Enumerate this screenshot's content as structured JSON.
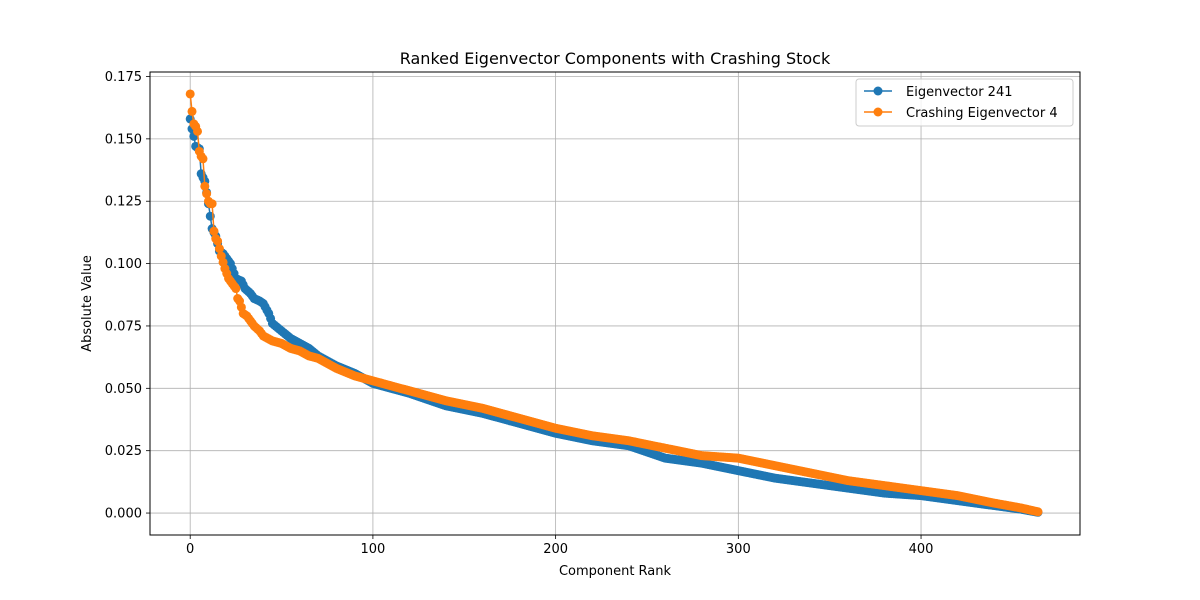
{
  "chart_data": {
    "type": "line",
    "title": "Ranked Eigenvector Components with Crashing Stock",
    "xlabel": "Component Rank",
    "ylabel": "Absolute Value",
    "xlim": [
      -22,
      487
    ],
    "ylim": [
      -0.0088,
      0.1768
    ],
    "xticks": [
      0,
      100,
      200,
      300,
      400
    ],
    "xtick_labels": [
      "0",
      "100",
      "200",
      "300",
      "400"
    ],
    "yticks": [
      0.0,
      0.025,
      0.05,
      0.075,
      0.1,
      0.125,
      0.15,
      0.175
    ],
    "ytick_labels": [
      "0.000",
      "0.025",
      "0.050",
      "0.075",
      "0.100",
      "0.125",
      "0.150",
      "0.175"
    ],
    "grid": true,
    "legend_position": "top-right",
    "n_points": 465,
    "series": [
      {
        "name": "Eigenvector 241",
        "color": "#1f77b4",
        "marker": "circle",
        "x": [
          0,
          1,
          2,
          3,
          5,
          6,
          8,
          10,
          12,
          14,
          16,
          18,
          20,
          22,
          25,
          28,
          30,
          33,
          35,
          38,
          40,
          43,
          45,
          50,
          55,
          60,
          65,
          70,
          75,
          80,
          90,
          100,
          120,
          140,
          160,
          180,
          200,
          220,
          240,
          260,
          280,
          300,
          320,
          340,
          360,
          380,
          400,
          420,
          440,
          455,
          464
        ],
        "y": [
          0.158,
          0.154,
          0.151,
          0.147,
          0.146,
          0.136,
          0.133,
          0.124,
          0.114,
          0.111,
          0.105,
          0.104,
          0.102,
          0.1,
          0.094,
          0.093,
          0.09,
          0.088,
          0.086,
          0.085,
          0.084,
          0.08,
          0.076,
          0.073,
          0.07,
          0.068,
          0.066,
          0.063,
          0.061,
          0.059,
          0.056,
          0.052,
          0.048,
          0.043,
          0.04,
          0.036,
          0.032,
          0.029,
          0.027,
          0.022,
          0.02,
          0.017,
          0.014,
          0.012,
          0.01,
          0.008,
          0.007,
          0.005,
          0.003,
          0.0015,
          0.0003
        ]
      },
      {
        "name": "Crashing Eigenvector 4",
        "color": "#ff7f0e",
        "marker": "circle",
        "x": [
          0,
          1,
          2,
          3,
          4,
          5,
          6,
          7,
          8,
          9,
          10,
          11,
          12,
          13,
          14,
          15,
          17,
          19,
          21,
          23,
          25,
          26,
          27,
          29,
          31,
          33,
          35,
          38,
          40,
          45,
          50,
          55,
          60,
          65,
          70,
          75,
          80,
          90,
          100,
          120,
          140,
          160,
          180,
          200,
          220,
          240,
          260,
          280,
          300,
          320,
          340,
          360,
          380,
          400,
          420,
          440,
          455,
          464
        ],
        "y": [
          0.168,
          0.161,
          0.156,
          0.155,
          0.153,
          0.145,
          0.143,
          0.142,
          0.131,
          0.128,
          0.125,
          0.124,
          0.124,
          0.113,
          0.11,
          0.109,
          0.103,
          0.098,
          0.094,
          0.092,
          0.09,
          0.086,
          0.085,
          0.08,
          0.079,
          0.077,
          0.075,
          0.073,
          0.071,
          0.069,
          0.068,
          0.066,
          0.065,
          0.063,
          0.062,
          0.06,
          0.058,
          0.055,
          0.053,
          0.049,
          0.045,
          0.042,
          0.038,
          0.034,
          0.031,
          0.029,
          0.026,
          0.023,
          0.022,
          0.019,
          0.016,
          0.013,
          0.011,
          0.009,
          0.007,
          0.004,
          0.002,
          0.0005
        ]
      }
    ]
  }
}
